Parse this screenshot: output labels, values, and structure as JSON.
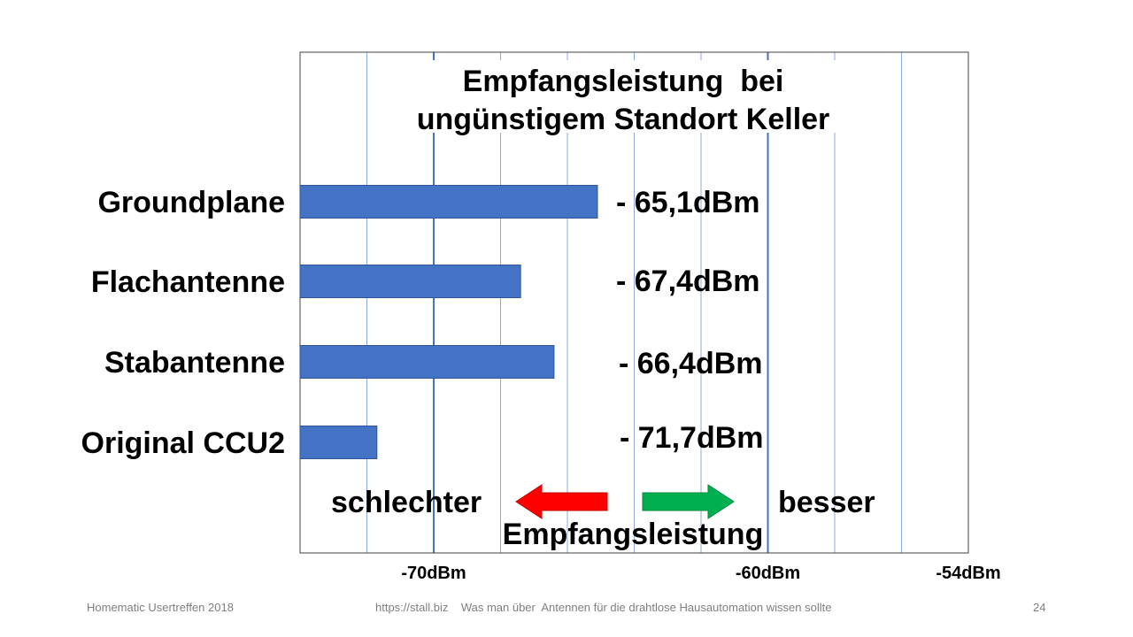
{
  "chart_data": {
    "type": "bar",
    "orientation": "horizontal",
    "title": [
      "Empfangsleistung  bei",
      "ungünstigem Standort Keller"
    ],
    "categories": [
      "Groundplane",
      "Flachantenne",
      "Stabantenne",
      "Original CCU2"
    ],
    "values": [
      -65.1,
      -67.4,
      -66.4,
      -71.7
    ],
    "value_labels": [
      "- 65,1dBm",
      "- 67,4dBm",
      "- 66,4dBm",
      "- 71,7dBm"
    ],
    "xlim": [
      -74,
      -54
    ],
    "x_ticks": [
      {
        "value": -70,
        "label": "-70dBm"
      },
      {
        "value": -60,
        "label": "-60dBm"
      },
      {
        "value": -54,
        "label": "-54dBm"
      }
    ],
    "grid": true,
    "bar_color": "#4472c4",
    "annotations": {
      "worse": "schlechter",
      "better": "besser",
      "axis_caption": "Empfangsleistung",
      "worse_arrow_color": "#ff0000",
      "better_arrow_color": "#00b050"
    }
  },
  "footer": {
    "left": "Homematic Usertreffen 2018",
    "center": "https://stall.biz    Was man über  Antennen für die drahtlose Hausautomation wissen sollte",
    "page_number": "24"
  }
}
